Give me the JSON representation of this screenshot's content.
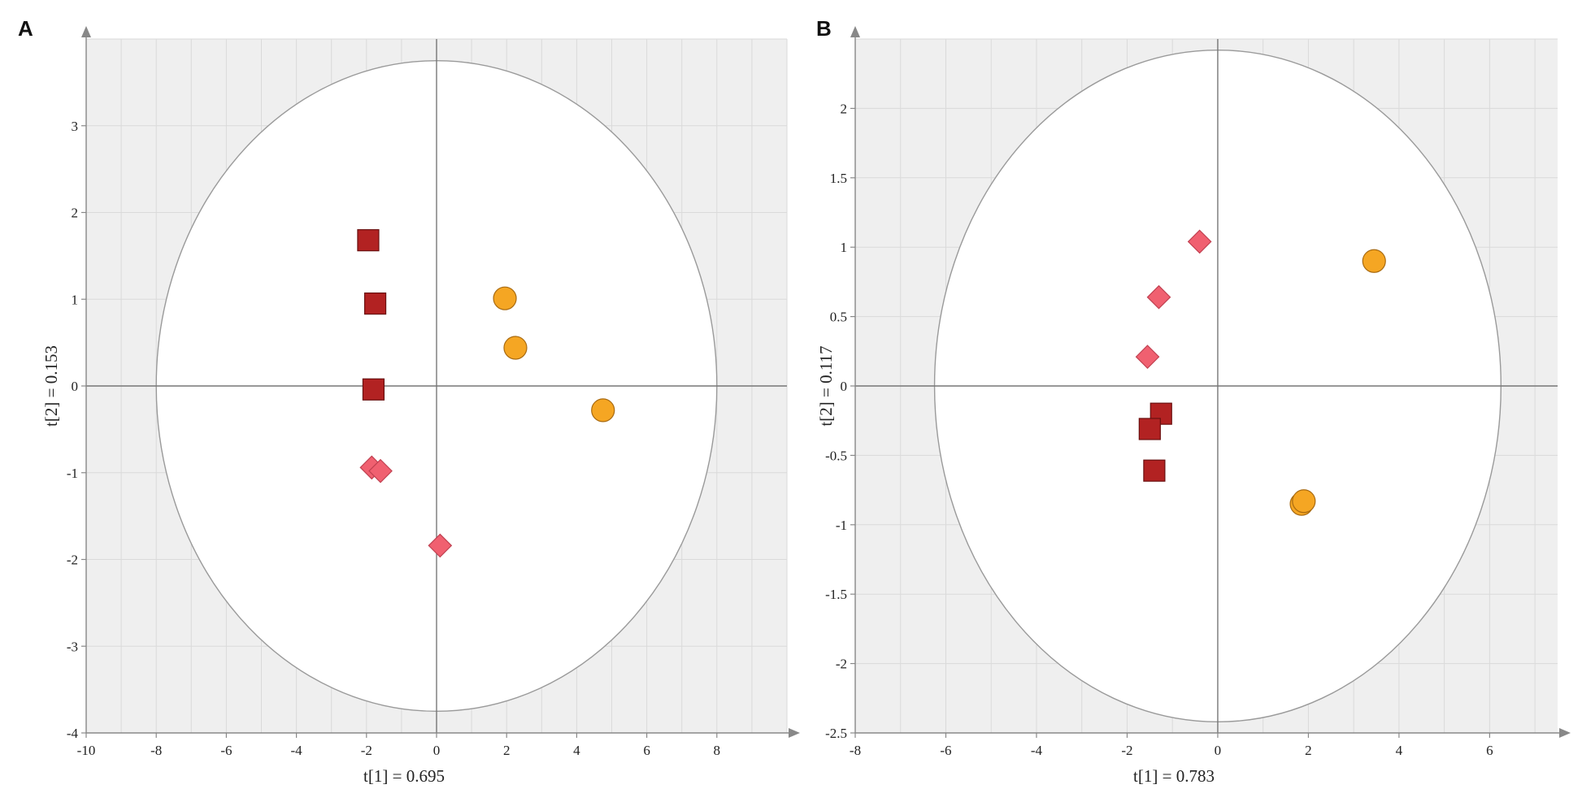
{
  "panels": [
    {
      "label": "A",
      "chart_data": {
        "type": "scatter",
        "title": "",
        "xlabel": "t[1] = 0.695",
        "ylabel": "t[2] = 0.153",
        "xlim": [
          -10,
          10
        ],
        "ylim": [
          -4,
          4
        ],
        "xticks": [
          -10,
          -8,
          -6,
          -4,
          -2,
          0,
          2,
          4,
          6,
          8
        ],
        "xtick_labels": [
          "-10",
          "-8",
          "-6",
          "-4",
          "-2",
          "0",
          "2",
          "4",
          "6",
          "8"
        ],
        "yticks": [
          -4,
          -3,
          -2,
          -1,
          0,
          1,
          2,
          3
        ],
        "ytick_labels": [
          "-4",
          "-3",
          "-2",
          "-1",
          "0",
          "1",
          "2",
          "3"
        ],
        "ellipse": {
          "rx": 8,
          "ry": 3.75
        },
        "grid": true,
        "series": [
          {
            "name": "squares",
            "marker": "square",
            "color": "#b22222",
            "points": [
              [
                -1.95,
                1.68
              ],
              [
                -1.75,
                0.95
              ],
              [
                -1.8,
                -0.04
              ]
            ]
          },
          {
            "name": "diamonds",
            "marker": "diamond",
            "color": "#f06070",
            "points": [
              [
                -1.85,
                -0.94
              ],
              [
                -1.6,
                -0.98
              ],
              [
                0.1,
                -1.84
              ]
            ]
          },
          {
            "name": "circles",
            "marker": "circle",
            "color": "#f5a623",
            "points": [
              [
                1.95,
                1.01
              ],
              [
                2.25,
                0.44
              ],
              [
                4.75,
                -0.28
              ]
            ]
          }
        ]
      }
    },
    {
      "label": "B",
      "chart_data": {
        "type": "scatter",
        "title": "",
        "xlabel": "t[1] = 0.783",
        "ylabel": "t[2] = 0.117",
        "xlim": [
          -8,
          8
        ],
        "ylim": [
          -2.5,
          2.5
        ],
        "xticks": [
          -8,
          -6,
          -4,
          -2,
          0,
          2,
          4,
          6
        ],
        "xtick_labels": [
          "-8",
          "-6",
          "-4",
          "-2",
          "0",
          "2",
          "4",
          "6"
        ],
        "yticks": [
          -2.5,
          -2,
          -1.5,
          -1,
          -0.5,
          0,
          0.5,
          1,
          1.5,
          2
        ],
        "ytick_labels": [
          "-2.5",
          "-2",
          "-1.5",
          "-1",
          "-0.5",
          "0",
          "0.5",
          "1",
          "1.5",
          "2"
        ],
        "ellipse": {
          "rx": 6.25,
          "ry": 2.42
        },
        "grid": true,
        "series": [
          {
            "name": "squares",
            "marker": "square",
            "color": "#b22222",
            "points": [
              [
                -1.25,
                -0.2
              ],
              [
                -1.5,
                -0.31
              ],
              [
                -1.4,
                -0.61
              ]
            ]
          },
          {
            "name": "diamonds",
            "marker": "diamond",
            "color": "#f06070",
            "points": [
              [
                -0.4,
                1.04
              ],
              [
                -1.3,
                0.64
              ],
              [
                -1.55,
                0.21
              ]
            ]
          },
          {
            "name": "circles",
            "marker": "circle",
            "color": "#f5a623",
            "points": [
              [
                3.45,
                0.9
              ],
              [
                1.85,
                -0.85
              ],
              [
                1.9,
                -0.83
              ]
            ]
          }
        ]
      }
    }
  ]
}
